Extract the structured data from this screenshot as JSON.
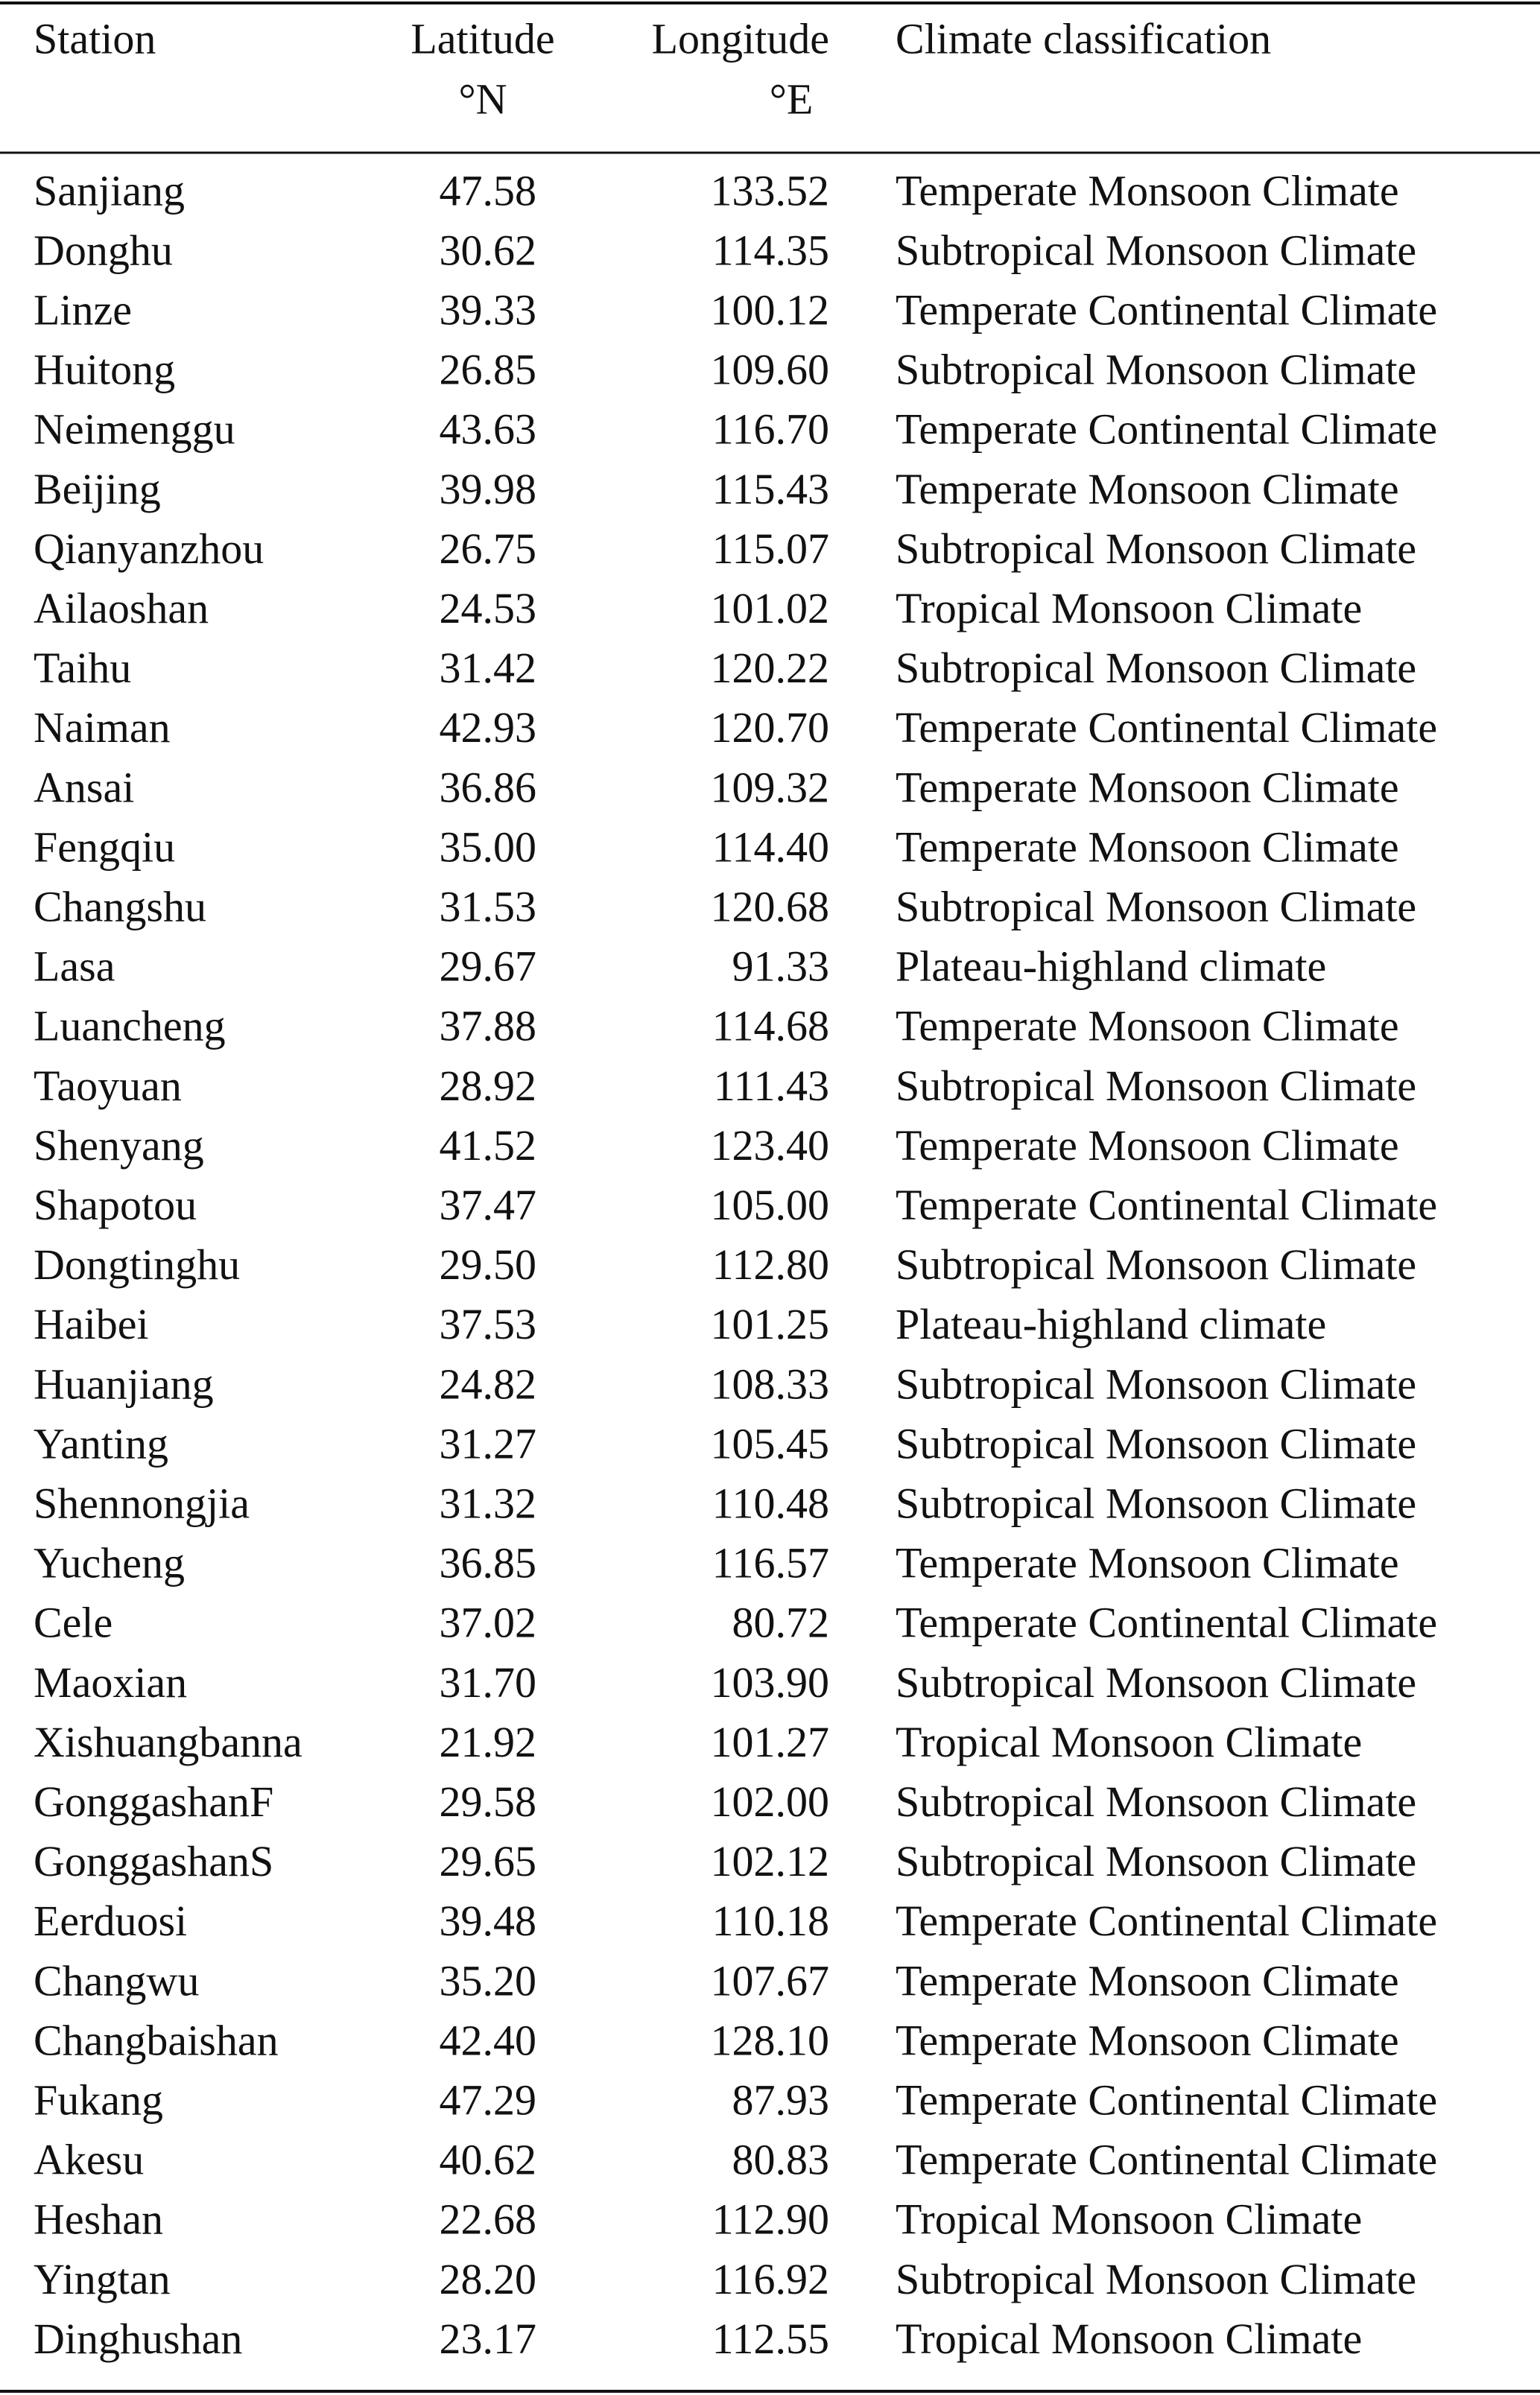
{
  "table": {
    "header": [
      [
        "Station"
      ],
      [
        "Latitude",
        "°N"
      ],
      [
        "Longitude",
        "°E"
      ],
      [
        "Climate classification"
      ]
    ],
    "rows": [
      [
        "Sanjiang",
        "47.58",
        "133.52",
        "Temperate Monsoon Climate"
      ],
      [
        "Donghu",
        "30.62",
        "114.35",
        "Subtropical Monsoon Climate"
      ],
      [
        "Linze",
        "39.33",
        "100.12",
        "Temperate Continental Climate"
      ],
      [
        "Huitong",
        "26.85",
        "109.60",
        "Subtropical Monsoon Climate"
      ],
      [
        "Neimenggu",
        "43.63",
        "116.70",
        "Temperate Continental Climate"
      ],
      [
        "Beijing",
        "39.98",
        "115.43",
        "Temperate Monsoon Climate"
      ],
      [
        "Qianyanzhou",
        "26.75",
        "115.07",
        "Subtropical Monsoon Climate"
      ],
      [
        "Ailaoshan",
        "24.53",
        "101.02",
        "Tropical Monsoon Climate"
      ],
      [
        "Taihu",
        "31.42",
        "120.22",
        "Subtropical Monsoon Climate"
      ],
      [
        "Naiman",
        "42.93",
        "120.70",
        "Temperate Continental Climate"
      ],
      [
        "Ansai",
        "36.86",
        "109.32",
        "Temperate Monsoon Climate"
      ],
      [
        "Fengqiu",
        "35.00",
        "114.40",
        "Temperate Monsoon Climate"
      ],
      [
        "Changshu",
        "31.53",
        "120.68",
        "Subtropical Monsoon Climate"
      ],
      [
        "Lasa",
        "29.67",
        "91.33",
        "Plateau-highland climate"
      ],
      [
        "Luancheng",
        "37.88",
        "114.68",
        "Temperate Monsoon Climate"
      ],
      [
        "Taoyuan",
        "28.92",
        "111.43",
        "Subtropical Monsoon Climate"
      ],
      [
        "Shenyang",
        "41.52",
        "123.40",
        "Temperate Monsoon Climate"
      ],
      [
        "Shapotou",
        "37.47",
        "105.00",
        "Temperate Continental Climate"
      ],
      [
        "Dongtinghu",
        "29.50",
        "112.80",
        "Subtropical Monsoon Climate"
      ],
      [
        "Haibei",
        "37.53",
        "101.25",
        "Plateau-highland climate"
      ],
      [
        "Huanjiang",
        "24.82",
        "108.33",
        "Subtropical Monsoon Climate"
      ],
      [
        "Yanting",
        "31.27",
        "105.45",
        "Subtropical Monsoon Climate"
      ],
      [
        "Shennongjia",
        "31.32",
        "110.48",
        "Subtropical Monsoon Climate"
      ],
      [
        "Yucheng",
        "36.85",
        "116.57",
        "Temperate Monsoon Climate"
      ],
      [
        "Cele",
        "37.02",
        "80.72",
        "Temperate Continental Climate"
      ],
      [
        "Maoxian",
        "31.70",
        "103.90",
        "Subtropical Monsoon Climate"
      ],
      [
        "Xishuangbanna",
        "21.92",
        "101.27",
        "Tropical Monsoon Climate"
      ],
      [
        "GonggashanF",
        "29.58",
        "102.00",
        "Subtropical Monsoon Climate"
      ],
      [
        "GonggashanS",
        "29.65",
        "102.12",
        "Subtropical Monsoon Climate"
      ],
      [
        "Eerduosi",
        "39.48",
        "110.18",
        "Temperate Continental Climate"
      ],
      [
        "Changwu",
        "35.20",
        "107.67",
        "Temperate Monsoon Climate"
      ],
      [
        "Changbaishan",
        "42.40",
        "128.10",
        "Temperate Monsoon Climate"
      ],
      [
        "Fukang",
        "47.29",
        "87.93",
        "Temperate Continental Climate"
      ],
      [
        "Akesu",
        "40.62",
        "80.83",
        "Temperate Continental Climate"
      ],
      [
        "Heshan",
        "22.68",
        "112.90",
        "Tropical Monsoon Climate"
      ],
      [
        "Yingtan",
        "28.20",
        "116.92",
        "Subtropical Monsoon Climate"
      ],
      [
        "Dinghushan",
        "23.17",
        "112.55",
        "Tropical Monsoon Climate"
      ]
    ]
  }
}
